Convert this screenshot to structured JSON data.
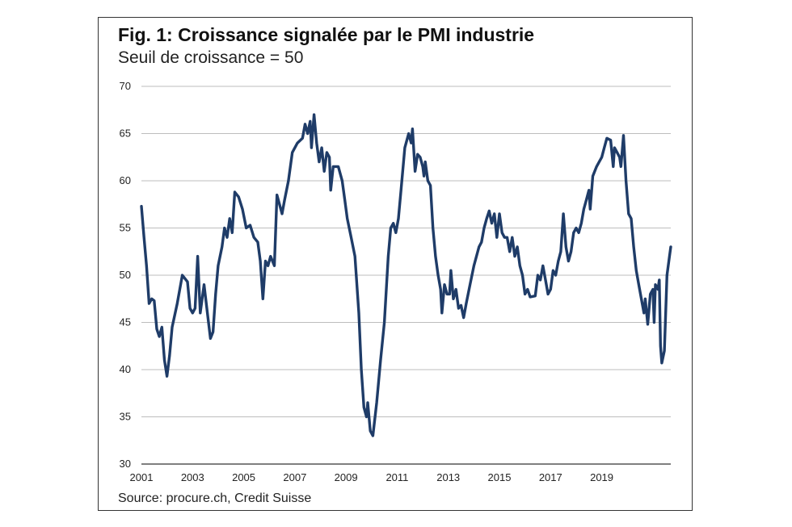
{
  "figure": {
    "title": "Fig. 1: Croissance signalée par le PMI industrie",
    "subtitle": "Seuil de croissance = 50",
    "source": "Source: procure.ch, Credit Suisse"
  },
  "colors": {
    "line": "#1f3c68",
    "grid": "#bdbdbd",
    "axis": "#333333"
  },
  "chart_data": {
    "type": "line",
    "title": "Fig. 1: Croissance signalée par le PMI industrie",
    "subtitle": "Seuil de croissance = 50",
    "xlabel": "",
    "ylabel": "",
    "xlim": [
      2001,
      2021.7
    ],
    "ylim": [
      30,
      70
    ],
    "yticks": [
      30,
      35,
      40,
      45,
      50,
      55,
      60,
      65,
      70
    ],
    "xticks": [
      "2001",
      "2003",
      "2005",
      "2007",
      "2009",
      "2011",
      "2013",
      "2015",
      "2017",
      "2019"
    ],
    "grid": "horizontal",
    "series": [
      {
        "values": [
          [
            2001.0,
            57.3
          ],
          [
            2001.1,
            54.0
          ],
          [
            2001.2,
            51.0
          ],
          [
            2001.3,
            47.0
          ],
          [
            2001.4,
            47.5
          ],
          [
            2001.5,
            47.3
          ],
          [
            2001.6,
            44.3
          ],
          [
            2001.7,
            43.5
          ],
          [
            2001.8,
            44.5
          ],
          [
            2001.9,
            41.0
          ],
          [
            2002.0,
            39.3
          ],
          [
            2002.1,
            41.5
          ],
          [
            2002.2,
            44.5
          ],
          [
            2002.4,
            47.0
          ],
          [
            2002.6,
            50.0
          ],
          [
            2002.8,
            49.3
          ],
          [
            2002.9,
            46.5
          ],
          [
            2003.0,
            46.0
          ],
          [
            2003.1,
            46.5
          ],
          [
            2003.2,
            52.0
          ],
          [
            2003.3,
            46.0
          ],
          [
            2003.45,
            49.0
          ],
          [
            2003.6,
            45.5
          ],
          [
            2003.7,
            43.3
          ],
          [
            2003.8,
            44.0
          ],
          [
            2003.9,
            48.0
          ],
          [
            2004.0,
            51.0
          ],
          [
            2004.15,
            53.0
          ],
          [
            2004.25,
            55.0
          ],
          [
            2004.35,
            54.0
          ],
          [
            2004.45,
            56.0
          ],
          [
            2004.55,
            54.5
          ],
          [
            2004.65,
            58.8
          ],
          [
            2004.8,
            58.3
          ],
          [
            2004.95,
            57.0
          ],
          [
            2005.1,
            55.0
          ],
          [
            2005.25,
            55.3
          ],
          [
            2005.4,
            54.0
          ],
          [
            2005.55,
            53.5
          ],
          [
            2005.65,
            51.5
          ],
          [
            2005.75,
            47.5
          ],
          [
            2005.85,
            51.5
          ],
          [
            2005.95,
            51.0
          ],
          [
            2006.05,
            52.0
          ],
          [
            2006.2,
            51.0
          ],
          [
            2006.3,
            58.5
          ],
          [
            2006.4,
            57.5
          ],
          [
            2006.5,
            56.5
          ],
          [
            2006.6,
            58.0
          ],
          [
            2006.75,
            60.0
          ],
          [
            2006.9,
            63.0
          ],
          [
            2007.1,
            64.0
          ],
          [
            2007.3,
            64.5
          ],
          [
            2007.4,
            66.0
          ],
          [
            2007.5,
            65.0
          ],
          [
            2007.6,
            66.3
          ],
          [
            2007.65,
            63.5
          ],
          [
            2007.75,
            67.0
          ],
          [
            2007.85,
            64.0
          ],
          [
            2007.95,
            62.0
          ],
          [
            2008.05,
            63.5
          ],
          [
            2008.15,
            61.0
          ],
          [
            2008.25,
            63.0
          ],
          [
            2008.35,
            62.5
          ],
          [
            2008.4,
            59.0
          ],
          [
            2008.5,
            61.5
          ],
          [
            2008.7,
            61.5
          ],
          [
            2008.85,
            60.0
          ],
          [
            2008.95,
            58.0
          ],
          [
            2009.05,
            56.0
          ],
          [
            2009.2,
            54.0
          ],
          [
            2009.35,
            52.0
          ],
          [
            2009.5,
            46.0
          ],
          [
            2009.6,
            40.0
          ],
          [
            2009.7,
            36.0
          ],
          [
            2009.8,
            35.0
          ],
          [
            2009.85,
            36.5
          ],
          [
            2009.95,
            33.5
          ],
          [
            2010.05,
            33.0
          ],
          [
            2010.2,
            36.5
          ],
          [
            2010.35,
            41.0
          ],
          [
            2010.5,
            45.0
          ],
          [
            2010.65,
            52.0
          ],
          [
            2010.75,
            55.0
          ],
          [
            2010.85,
            55.5
          ],
          [
            2010.95,
            54.5
          ],
          [
            2011.05,
            56.0
          ],
          [
            2011.15,
            59.0
          ],
          [
            2011.3,
            63.5
          ],
          [
            2011.45,
            65.0
          ],
          [
            2011.55,
            64.0
          ],
          [
            2011.6,
            65.5
          ],
          [
            2011.7,
            61.0
          ],
          [
            2011.8,
            62.8
          ],
          [
            2011.9,
            62.5
          ],
          [
            2012.0,
            61.5
          ],
          [
            2012.05,
            60.5
          ],
          [
            2012.1,
            62.0
          ],
          [
            2012.2,
            60.0
          ],
          [
            2012.3,
            59.5
          ],
          [
            2012.4,
            55.0
          ],
          [
            2012.5,
            52.0
          ],
          [
            2012.6,
            50.0
          ],
          [
            2012.7,
            48.5
          ],
          [
            2012.75,
            46.0
          ],
          [
            2012.85,
            49.0
          ],
          [
            2012.95,
            48.0
          ],
          [
            2013.05,
            48.0
          ],
          [
            2013.1,
            50.5
          ],
          [
            2013.2,
            47.5
          ],
          [
            2013.3,
            48.5
          ],
          [
            2013.4,
            46.5
          ],
          [
            2013.5,
            46.8
          ],
          [
            2013.6,
            45.5
          ],
          [
            2013.7,
            47.0
          ],
          [
            2013.85,
            49.0
          ],
          [
            2014.0,
            51.0
          ],
          [
            2014.2,
            53.0
          ],
          [
            2014.3,
            53.5
          ],
          [
            2014.4,
            55.0
          ],
          [
            2014.5,
            56.0
          ],
          [
            2014.6,
            56.8
          ],
          [
            2014.7,
            55.5
          ],
          [
            2014.8,
            56.5
          ],
          [
            2014.9,
            54.0
          ],
          [
            2015.0,
            56.5
          ],
          [
            2015.1,
            54.5
          ],
          [
            2015.2,
            54.0
          ],
          [
            2015.3,
            54.0
          ],
          [
            2015.4,
            52.5
          ],
          [
            2015.5,
            54.0
          ],
          [
            2015.6,
            52.0
          ],
          [
            2015.7,
            53.0
          ],
          [
            2015.8,
            51.0
          ],
          [
            2015.9,
            50.0
          ],
          [
            2016.0,
            48.0
          ],
          [
            2016.1,
            48.5
          ],
          [
            2016.2,
            47.7
          ],
          [
            2016.4,
            47.8
          ],
          [
            2016.5,
            50.0
          ],
          [
            2016.6,
            49.5
          ],
          [
            2016.7,
            51.0
          ],
          [
            2016.8,
            49.5
          ],
          [
            2016.9,
            48.0
          ],
          [
            2017.0,
            48.5
          ],
          [
            2017.1,
            50.5
          ],
          [
            2017.2,
            50.0
          ],
          [
            2017.3,
            51.5
          ],
          [
            2017.4,
            52.5
          ],
          [
            2017.5,
            56.5
          ],
          [
            2017.6,
            53.0
          ],
          [
            2017.7,
            51.5
          ],
          [
            2017.8,
            52.5
          ],
          [
            2017.9,
            54.5
          ],
          [
            2018.0,
            55.0
          ],
          [
            2018.1,
            54.5
          ],
          [
            2018.2,
            55.5
          ],
          [
            2018.3,
            57.0
          ],
          [
            2018.4,
            58.0
          ],
          [
            2018.5,
            59.0
          ],
          [
            2018.55,
            57.0
          ],
          [
            2018.65,
            60.5
          ],
          [
            2018.8,
            61.5
          ],
          [
            2018.9,
            62.0
          ],
          [
            2019.0,
            62.5
          ],
          [
            2019.1,
            63.5
          ],
          [
            2019.2,
            64.5
          ],
          [
            2019.35,
            64.3
          ],
          [
            2019.45,
            61.5
          ],
          [
            2019.5,
            63.5
          ],
          [
            2019.6,
            63.0
          ],
          [
            2019.7,
            62.5
          ],
          [
            2019.75,
            61.5
          ],
          [
            2019.85,
            64.8
          ],
          [
            2019.95,
            60.0
          ],
          [
            2020.05,
            56.5
          ],
          [
            2020.15,
            56.0
          ],
          [
            2020.25,
            53.0
          ],
          [
            2020.35,
            50.5
          ],
          [
            2020.45,
            49.0
          ],
          [
            2020.55,
            47.5
          ],
          [
            2020.65,
            46.0
          ],
          [
            2020.7,
            47.5
          ],
          [
            2020.8,
            44.8
          ],
          [
            2020.9,
            48.0
          ],
          [
            2021.0,
            48.5
          ],
          [
            2021.05,
            45.0
          ],
          [
            2021.1,
            49.0
          ],
          [
            2021.2,
            48.5
          ],
          [
            2021.25,
            49.5
          ],
          [
            2021.3,
            42.5
          ],
          [
            2021.35,
            40.7
          ],
          [
            2021.45,
            42.0
          ],
          [
            2021.55,
            50.0
          ],
          [
            2021.65,
            52.0
          ],
          [
            2021.7,
            53.0
          ]
        ]
      }
    ]
  }
}
